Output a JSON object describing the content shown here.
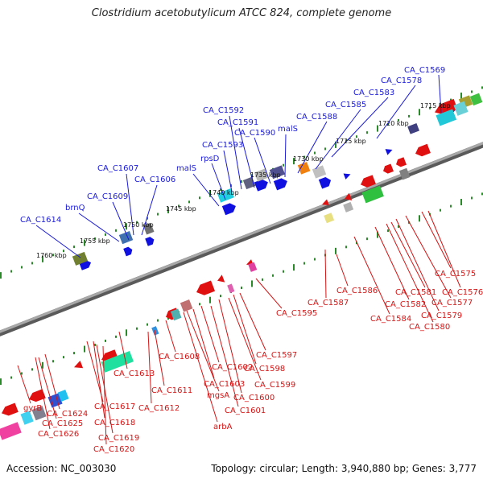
{
  "title": "Clostridium acetobutylicum ATCC 824, complete genome",
  "footer": {
    "accession": "Accession: NC_003030",
    "summary": "Topology: circular; Length: 3,940,880 bp; Genes: 3,777"
  },
  "colors": {
    "backbone": "#888888",
    "tick_dots": "#2a8a2a",
    "forward_label": "#1a1ad8",
    "reverse_label": "#d41414",
    "forward_arrow": "#1010e0",
    "reverse_arrow": "#e01010"
  },
  "scale_labels": [
    "1715 kbp",
    "1720 kbp",
    "1725 kbp",
    "1730 kbp",
    "1735 kbp",
    "1740 kbp",
    "1745 kbp",
    "1750 kbp",
    "1755 kbp",
    "1760 kbp"
  ],
  "upper_labels": [
    "CA_C1569",
    "CA_C1578",
    "CA_C1583",
    "CA_C1585",
    "CA_C1588",
    "malS",
    "CA_C1590",
    "CA_C1591",
    "CA_C1592",
    "CA_C1593",
    "rpsD",
    "malS",
    "CA_C1606",
    "CA_C1607",
    "CA_C1609",
    "brnQ",
    "CA_C1614"
  ],
  "lower_labels": [
    "CA_C1575",
    "CA_C1576",
    "CA_C1577",
    "CA_C1579",
    "CA_C1580",
    "CA_C1581",
    "CA_C1582",
    "CA_C1584",
    "CA_C1586",
    "CA_C1587",
    "CA_C1595",
    "CA_C1597",
    "CA_C1598",
    "CA_C1599",
    "CA_C1600",
    "CA_C1601",
    "CA_C1602",
    "CA_C1603",
    "mgsA",
    "arbA",
    "CA_C1608",
    "CA_C1611",
    "CA_C1612",
    "CA_C1613",
    "CA_C1617",
    "CA_C1618",
    "CA_C1619",
    "CA_C1620",
    "CA_C1624",
    "CA_C1625",
    "CA_C1626",
    "gyrB"
  ]
}
